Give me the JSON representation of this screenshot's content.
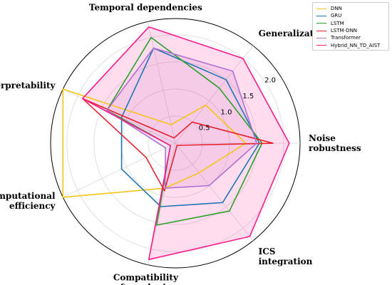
{
  "chart_data": {
    "type": "radar",
    "axes": [
      "Noise robustness",
      "Generalization",
      "Temporal dependencies",
      "Interpretability",
      "Computational efficiency",
      "Compatibility fuzzy logic",
      "ICS integration"
    ],
    "axis_labels_display": [
      [
        "Noise",
        "robustness"
      ],
      [
        "Generalization"
      ],
      [
        "Temporal dependencies"
      ],
      [
        "Interpretability"
      ],
      [
        "Computational",
        "efficiency"
      ],
      [
        "Compatibility",
        "fuzzy logic"
      ],
      [
        "ICS",
        "integration"
      ]
    ],
    "radial_ticks": [
      "0.5",
      "1.0",
      "1.5",
      "2.0"
    ],
    "radial_tick_values": [
      0.5,
      1.0,
      1.5,
      2.0
    ],
    "rlim": [
      0,
      2.3
    ],
    "grid": true,
    "legend_placement": "top-right",
    "series": [
      {
        "name": "DNN",
        "color": "#f5c518",
        "fill": false,
        "values": [
          1.3,
          0.9,
          0.35,
          2.3,
          2.3,
          0.85,
          0.7
        ]
      },
      {
        "name": "GRU",
        "color": "#1f77b4",
        "fill": false,
        "values": [
          1.55,
          1.5,
          1.8,
          1.1,
          1.1,
          1.2,
          1.4
        ]
      },
      {
        "name": "LSTM",
        "color": "#2ca02c",
        "fill": false,
        "values": [
          1.6,
          1.3,
          2.0,
          1.4,
          0.1,
          1.55,
          1.6
        ]
      },
      {
        "name": "LSTM-DNN",
        "color": "#e8212e",
        "fill": false,
        "values": [
          1.8,
          0.5,
          0.1,
          1.9,
          0.6,
          0.9,
          0.05
        ]
      },
      {
        "name": "Transformer",
        "color": "#b36fd0",
        "fill": true,
        "values": [
          1.5,
          1.7,
          1.8,
          1.4,
          0.2,
          0.85,
          1.0
        ]
      },
      {
        "name": "Hybrid_NN_TD_AIST",
        "color": "#ff1a8c",
        "fill": true,
        "values": [
          2.1,
          2.0,
          2.2,
          1.9,
          0.1,
          2.2,
          2.2
        ]
      }
    ]
  }
}
